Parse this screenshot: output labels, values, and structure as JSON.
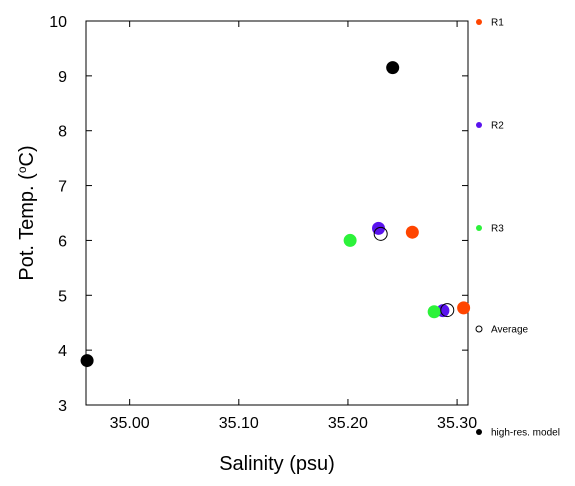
{
  "chart_data": {
    "type": "scatter",
    "xlabel": "Salinity (psu)",
    "ylabel_main": "Pot. Temp. (",
    "ylabel_sup": "o",
    "ylabel_tail": "C)",
    "xlim": [
      34.96,
      35.31
    ],
    "ylim": [
      3,
      10
    ],
    "x_ticks": [
      {
        "value": 35.0,
        "label": "35.00"
      },
      {
        "value": 35.1,
        "label": "35.10"
      },
      {
        "value": 35.2,
        "label": "35.20"
      },
      {
        "value": 35.3,
        "label": "35.30"
      }
    ],
    "y_ticks": [
      {
        "value": 3,
        "label": "3"
      },
      {
        "value": 4,
        "label": "4"
      },
      {
        "value": 5,
        "label": "5"
      },
      {
        "value": 6,
        "label": "6"
      },
      {
        "value": 7,
        "label": "7"
      },
      {
        "value": 8,
        "label": "8"
      },
      {
        "value": 9,
        "label": "9"
      },
      {
        "value": 10,
        "label": "10"
      }
    ],
    "grid": false,
    "legend_placement": "right",
    "series": [
      {
        "name": "R1",
        "color": "#ff4500",
        "marker": "filled",
        "points": [
          {
            "x": 35.259,
            "y": 6.15
          },
          {
            "x": 35.306,
            "y": 4.77
          }
        ]
      },
      {
        "name": "R2",
        "color": "#5a13ee",
        "marker": "filled",
        "points": [
          {
            "x": 35.228,
            "y": 6.22
          },
          {
            "x": 35.287,
            "y": 4.72
          }
        ]
      },
      {
        "name": "R3",
        "color": "#2cf23a",
        "marker": "filled",
        "points": [
          {
            "x": 35.202,
            "y": 6.0
          },
          {
            "x": 35.279,
            "y": 4.7
          }
        ]
      },
      {
        "name": "Average",
        "color": "#000000",
        "marker": "open",
        "points": [
          {
            "x": 35.23,
            "y": 6.12
          },
          {
            "x": 35.291,
            "y": 4.73
          }
        ]
      },
      {
        "name": "high-res. model",
        "color": "#000000",
        "marker": "filled",
        "points": [
          {
            "x": 34.961,
            "y": 3.81
          },
          {
            "x": 35.241,
            "y": 9.15
          }
        ]
      }
    ]
  }
}
